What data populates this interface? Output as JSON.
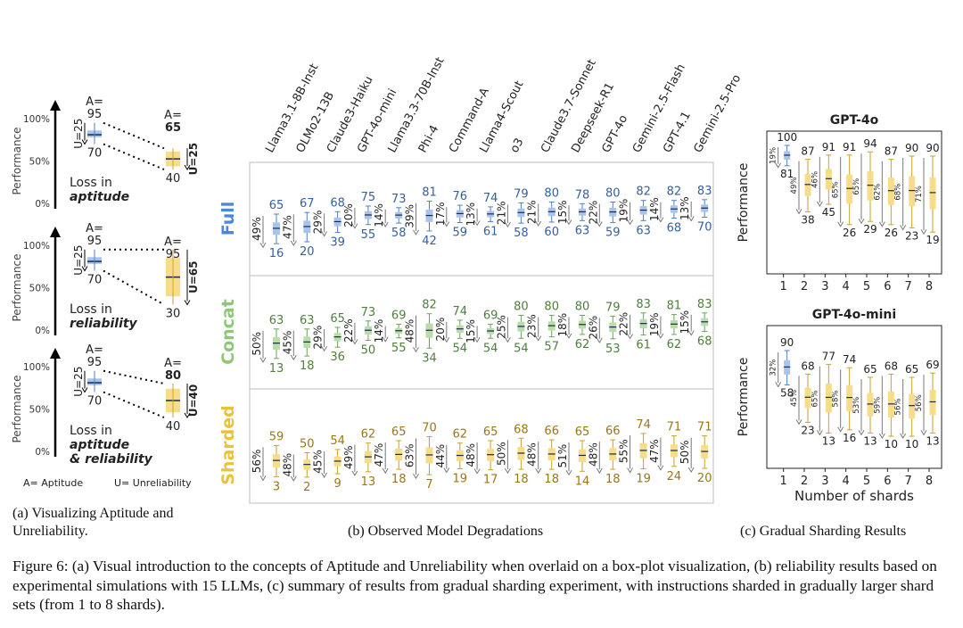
{
  "panel_a": {
    "perf_label": "Performance",
    "ticks": [
      "100%",
      "50%",
      "0%"
    ],
    "u_left": "U=25",
    "rows": [
      {
        "a_left": "A=",
        "a_left_val": "95",
        "bottom_left": "70",
        "top_right": "A=",
        "top_right_val": "65",
        "bottom_right": "40",
        "u_right": "U=25",
        "loss1": "Loss in",
        "loss2": "aptitude",
        "loss3": "",
        "right_bold": true
      },
      {
        "a_left": "A=",
        "a_left_val": "95",
        "bottom_left": "70",
        "top_right": "A=",
        "top_right_val": "95",
        "bottom_right": "30",
        "u_right": "U=65",
        "loss1": "Loss in",
        "loss2": "reliability",
        "loss3": "",
        "right_bold": false
      },
      {
        "a_left": "A=",
        "a_left_val": "95",
        "bottom_left": "70",
        "top_right": "A=",
        "top_right_val": "80",
        "bottom_right": "40",
        "u_right": "U=40",
        "loss1": "Loss in",
        "loss2": "aptitude",
        "loss3": "& reliability",
        "right_bold": true
      }
    ],
    "legend_a": "A= Aptitude",
    "legend_u": "U= Unreliability"
  },
  "captions": {
    "a": "(a) Visualizing Aptitude and Unreliability.",
    "b": "(b) Observed Model Degradations",
    "c": "(c) Gradual Sharding Results",
    "figure": "Figure 6: (a) Visual introduction to the concepts of Aptitude and Unreliability when overlaid on a box-plot visualization, (b) reliability results based on experimental simulations with 15 LLMs, (c) summary of results from gradual sharding experiment, with instructions sharded in gradually larger shard sets (from 1 to 8 shards)."
  },
  "colors": {
    "full": "#4f7fc9",
    "full_box": "#a9c4ec",
    "concat": "#6aa35a",
    "concat_box": "#b9dcab",
    "sharded": "#b08a1a",
    "sharded_box": "#f7dd8a",
    "sharded_label": "#e8c33a",
    "concat_label": "#8cc877",
    "full_label": "#4d86dc"
  },
  "chart_data": [
    {
      "type": "box",
      "models": [
        "Llama3.1-8B-Inst",
        "OLMo2-13B",
        "Claude3-Haiku",
        "GPT-4o-mini",
        "Llama3.3-70B-Inst",
        "Phi-4",
        "Command-A",
        "Llama4-Scout",
        "o3",
        "Claude3.7-Sonnet",
        "Deepseek-R1",
        "GPT-4o",
        "Gemini-2.5-Flash",
        "GPT-4.1",
        "Gemini-2.5-Pro"
      ],
      "series": [
        {
          "name": "Full",
          "top": [
            65,
            67,
            68,
            75,
            73,
            81,
            76,
            74,
            79,
            80,
            78,
            80,
            82,
            82,
            83
          ],
          "bottom": [
            16,
            20,
            39,
            55,
            58,
            42,
            59,
            61,
            58,
            60,
            63,
            59,
            63,
            68,
            70
          ],
          "pct": [
            "49%",
            "47%",
            "29%",
            "20%",
            "14%",
            "39%",
            "17%",
            "13%",
            "21%",
            "21%",
            "15%",
            "22%",
            "19%",
            "14%",
            "13%"
          ]
        },
        {
          "name": "Concat",
          "top": [
            63,
            63,
            65,
            73,
            69,
            82,
            74,
            69,
            80,
            80,
            80,
            79,
            83,
            81,
            83
          ],
          "bottom": [
            13,
            18,
            36,
            50,
            55,
            34,
            54,
            54,
            54,
            57,
            62,
            53,
            61,
            62,
            68
          ],
          "pct": [
            "50%",
            "45%",
            "29%",
            "22%",
            "14%",
            "48%",
            "20%",
            "15%",
            "25%",
            "23%",
            "18%",
            "26%",
            "22%",
            "19%",
            "15%"
          ]
        },
        {
          "name": "Sharded",
          "top": [
            59,
            50,
            54,
            62,
            65,
            70,
            62,
            65,
            68,
            66,
            65,
            66,
            74,
            71,
            71
          ],
          "bottom": [
            3,
            2,
            9,
            13,
            18,
            7,
            19,
            17,
            18,
            18,
            14,
            18,
            19,
            24,
            20
          ],
          "pct": [
            "56%",
            "48%",
            "45%",
            "49%",
            "47%",
            "63%",
            "44%",
            "48%",
            "50%",
            "48%",
            "51%",
            "48%",
            "55%",
            "47%",
            "50%"
          ]
        }
      ]
    },
    {
      "type": "box",
      "title": "GPT-4o",
      "ylabel": "Performance",
      "x": [
        1,
        2,
        3,
        4,
        5,
        6,
        7,
        8
      ],
      "top": [
        100,
        87,
        91,
        91,
        94,
        87,
        90,
        90
      ],
      "bottom": [
        81,
        38,
        45,
        26,
        29,
        26,
        23,
        19
      ],
      "pct": [
        "19%",
        "49%",
        "46%",
        "65%",
        "65%",
        "62%",
        "68%",
        "71%"
      ]
    },
    {
      "type": "box",
      "title": "GPT-4o-mini",
      "ylabel": "Performance",
      "xlabel": "Number of shards",
      "x": [
        1,
        2,
        3,
        4,
        5,
        6,
        7,
        8
      ],
      "top": [
        90,
        68,
        77,
        74,
        65,
        68,
        65,
        69
      ],
      "bottom": [
        58,
        23,
        13,
        16,
        13,
        10,
        10,
        13
      ],
      "pct": [
        "32%",
        "45%",
        "65%",
        "58%",
        "53%",
        "59%",
        "56%",
        "56%"
      ]
    }
  ]
}
